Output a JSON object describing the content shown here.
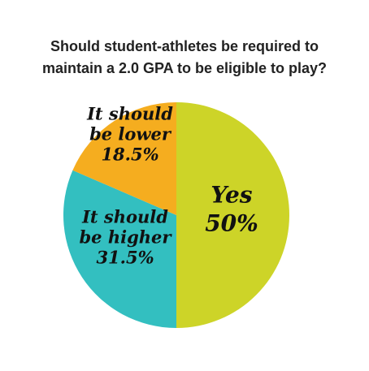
{
  "chart_data": {
    "type": "pie",
    "title_lines": [
      "Should student-athletes be required to",
      "maintain a 2.0 GPA to be eligible to play?"
    ],
    "slices": [
      {
        "label_lines": [
          "Yes",
          "50%"
        ],
        "value": 50,
        "color": "#cdd428"
      },
      {
        "label_lines": [
          "It should",
          "be higher",
          "31.5%"
        ],
        "value": 31.5,
        "color": "#33bfc0"
      },
      {
        "label_lines": [
          "It should",
          "be lower",
          "18.5%"
        ],
        "value": 18.5,
        "color": "#f5ad1f"
      }
    ]
  }
}
